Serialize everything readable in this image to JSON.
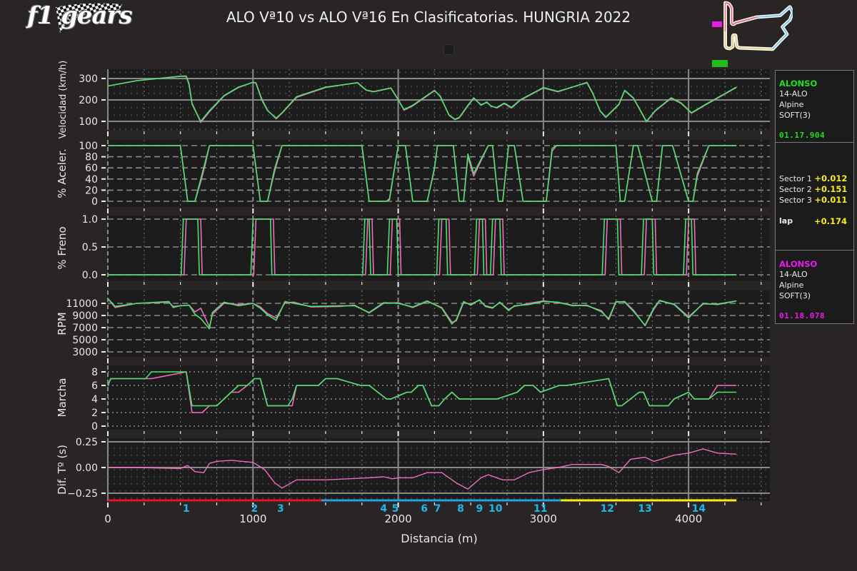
{
  "header": {
    "logo_text": "f1 gears",
    "title": "ALO Vª10 vs ALO Vª16 En Clasificatorias. HUNGRIA 2022"
  },
  "colors": {
    "background": "#282524",
    "plot_bg": "#1c1c1c",
    "driver1": "#4be36a",
    "driver2": "#f06cc0",
    "delta": "#f06cc0",
    "sector1": "#e8141c",
    "sector2": "#2a9ee8",
    "sector3": "#f4ee1e",
    "corner_label": "#1bb8f0",
    "time_green": "#22dd22",
    "time_magenta": "#e81ce8",
    "delta_yellow": "#f4ee1e"
  },
  "info": {
    "driver1": {
      "name": "ALONSO",
      "code": "14-ALO",
      "team": "Alpine",
      "tyre": "SOFT(3)",
      "laptime": "01.17.904"
    },
    "sectors": [
      {
        "label": "Sector 1",
        "delta": "+0.012"
      },
      {
        "label": "Sector 2",
        "delta": "+0.151"
      },
      {
        "label": "Sector 3",
        "delta": "+0.011"
      }
    ],
    "lap": {
      "label": "lap",
      "delta": "+0.174"
    },
    "driver2": {
      "name": "ALONSO",
      "code": "14-ALO",
      "team": "Alpine",
      "tyre": "SOFT(3)",
      "laptime": "01.18.078"
    }
  },
  "chart_data": {
    "type": "line",
    "title": "ALO Vª10 vs ALO Vª16 En Clasificatorias. HUNGRIA 2022",
    "xlabel": "Distancia (m)",
    "xlim": [
      0,
      4400
    ],
    "xticks": [
      0,
      1000,
      2000,
      3000,
      4000
    ],
    "x_tick_labels": [
      "0",
      "1000",
      "2000",
      "3000",
      "4000"
    ],
    "legend": [
      "ALO Vª10 (green)",
      "ALO Vª16 (magenta)"
    ],
    "subplots": [
      {
        "ylabel": "Velocidad (km/h)",
        "yticks": [
          100,
          200,
          300
        ],
        "ylim": [
          70,
          340
        ],
        "x": [
          0,
          200,
          500,
          540,
          560,
          580,
          640,
          700,
          800,
          900,
          1000,
          1020,
          1060,
          1100,
          1160,
          1200,
          1300,
          1500,
          1720,
          1780,
          1830,
          1950,
          2000,
          2040,
          2100,
          2250,
          2290,
          2350,
          2390,
          2420,
          2480,
          2520,
          2570,
          2610,
          2640,
          2680,
          2730,
          2780,
          2840,
          3000,
          3100,
          3300,
          3340,
          3390,
          3430,
          3520,
          3560,
          3620,
          3710,
          3770,
          3880,
          3950,
          4020,
          4120,
          4330
        ],
        "series": [
          {
            "name": "ALO Vª10",
            "values": [
              265,
              290,
              310,
              310,
              270,
              180,
              100,
              150,
              220,
              260,
              282,
              278,
              200,
              150,
              115,
              140,
              215,
              260,
              280,
              245,
              238,
              255,
              200,
              155,
              175,
              245,
              215,
              130,
              110,
              118,
              175,
              210,
              175,
              190,
              170,
              165,
              185,
              165,
              200,
              258,
              240,
              280,
              230,
              150,
              120,
              180,
              245,
              210,
              100,
              150,
              210,
              185,
              140,
              180,
              260
            ]
          },
          {
            "name": "ALO Vª16",
            "values": [
              265,
              290,
              311,
              312,
              275,
              185,
              95,
              145,
              218,
              258,
              283,
              280,
              205,
              152,
              112,
              138,
              212,
              258,
              281,
              246,
              239,
              256,
              202,
              152,
              172,
              243,
              218,
              128,
              108,
              116,
              172,
              208,
              178,
              188,
              172,
              162,
              183,
              162,
              198,
              256,
              238,
              282,
              232,
              148,
              118,
              178,
              243,
              208,
              98,
              148,
              208,
              183,
              138,
              178,
              258
            ]
          }
        ]
      },
      {
        "ylabel": "% Aceler.",
        "yticks": [
          0,
          20,
          40,
          60,
          80,
          100
        ],
        "ylim": [
          0,
          100
        ],
        "x": [
          0,
          500,
          550,
          600,
          640,
          670,
          700,
          1000,
          1050,
          1100,
          1150,
          1200,
          1750,
          1800,
          1920,
          1940,
          2000,
          2050,
          2100,
          2200,
          2250,
          2270,
          2380,
          2420,
          2450,
          2480,
          2520,
          2620,
          2650,
          2690,
          2720,
          2760,
          2800,
          2860,
          3020,
          3060,
          3090,
          3160,
          3500,
          3530,
          3560,
          3620,
          3650,
          3750,
          3780,
          3820,
          3890,
          4000,
          4030,
          4060,
          4140,
          4330
        ],
        "series": [
          {
            "name": "ALO Vª10",
            "values": [
              100,
              100,
              0,
              0,
              40,
              70,
              100,
              100,
              0,
              0,
              60,
              100,
              100,
              0,
              0,
              3,
              100,
              100,
              0,
              0,
              60,
              100,
              100,
              0,
              0,
              85,
              50,
              100,
              100,
              0,
              0,
              100,
              100,
              0,
              0,
              95,
              100,
              100,
              100,
              0,
              0,
              100,
              100,
              0,
              0,
              100,
              100,
              0,
              0,
              50,
              100,
              100
            ]
          },
          {
            "name": "ALO Vª16",
            "values": [
              100,
              100,
              0,
              0,
              35,
              65,
              100,
              100,
              0,
              0,
              55,
              100,
              100,
              0,
              0,
              5,
              100,
              100,
              0,
              0,
              58,
              100,
              100,
              0,
              0,
              80,
              45,
              100,
              100,
              0,
              0,
              100,
              100,
              0,
              0,
              90,
              100,
              100,
              100,
              0,
              0,
              100,
              100,
              0,
              0,
              100,
              100,
              0,
              0,
              45,
              100,
              100
            ]
          }
        ]
      },
      {
        "ylabel": "% Freno",
        "yticks": [
          0.0,
          0.5,
          1.0
        ],
        "y_tick_labels": [
          "0.0",
          "0.5",
          "1.0"
        ],
        "ylim": [
          0,
          1
        ],
        "brake_zones_m": [
          [
            520,
            620
          ],
          [
            1000,
            1120
          ],
          [
            1770,
            1800
          ],
          [
            1940,
            1990
          ],
          [
            2280,
            2330
          ],
          [
            2540,
            2580
          ],
          [
            2650,
            2700
          ],
          [
            3420,
            3510
          ],
          [
            3690,
            3750
          ],
          [
            3980,
            4020
          ]
        ],
        "series": [
          {
            "name": "ALO Vª10",
            "values": "on (1.0) within brake_zones_m, else 0.0"
          },
          {
            "name": "ALO Vª16",
            "values": "on (1.0) within brake_zones_m shifted by ~+20 m, else 0.0"
          }
        ]
      },
      {
        "ylabel": "RPM",
        "yticks": [
          3000,
          5000,
          7000,
          9000,
          11000
        ],
        "ylim": [
          3000,
          12500
        ],
        "x": [
          0,
          50,
          200,
          420,
          450,
          500,
          560,
          600,
          640,
          700,
          720,
          800,
          900,
          1000,
          1050,
          1100,
          1160,
          1220,
          1280,
          1400,
          1600,
          1700,
          1800,
          1900,
          2000,
          2100,
          2200,
          2300,
          2370,
          2400,
          2450,
          2500,
          2560,
          2600,
          2650,
          2700,
          2760,
          2800,
          2900,
          3000,
          3100,
          3200,
          3300,
          3400,
          3450,
          3500,
          3560,
          3620,
          3700,
          3760,
          3800,
          3900,
          4000,
          4100,
          4200,
          4330
        ],
        "series": [
          {
            "name": "ALO Vª10",
            "values": [
              11800,
              10500,
              11000,
              11300,
              10300,
              10600,
              10700,
              9200,
              8500,
              6800,
              9500,
              11200,
              10600,
              11000,
              10200,
              9100,
              8200,
              11300,
              11000,
              10500,
              10600,
              10600,
              9500,
              11100,
              11000,
              10400,
              11400,
              10200,
              7600,
              8300,
              11300,
              10700,
              11600,
              10500,
              10200,
              11200,
              9800,
              10600,
              10800,
              11300,
              11200,
              10600,
              10700,
              9600,
              8500,
              11300,
              11200,
              9700,
              7400,
              10200,
              11500,
              10800,
              8600,
              11000,
              10800,
              11400
            ]
          },
          {
            "name": "ALO Vª16",
            "values": [
              11800,
              10300,
              11000,
              11200,
              10500,
              10600,
              10700,
              9600,
              10200,
              7100,
              9200,
              11000,
              10800,
              11000,
              10400,
              9300,
              8600,
              11100,
              11200,
              10400,
              10500,
              10700,
              9400,
              11000,
              11100,
              10300,
              11300,
              10300,
              7900,
              8100,
              11100,
              10900,
              11500,
              10600,
              10300,
              11100,
              10000,
              10500,
              11000,
              11400,
              11100,
              10700,
              10600,
              9800,
              8300,
              11200,
              11300,
              9900,
              7300,
              10000,
              11400,
              10900,
              8800,
              10900,
              10900,
              11400
            ]
          }
        ]
      },
      {
        "ylabel": "Marcha",
        "yticks": [
          0,
          2,
          4,
          6,
          8
        ],
        "ylim": [
          0,
          8.5
        ],
        "x": [
          0,
          20,
          260,
          300,
          540,
          580,
          590,
          650,
          700,
          750,
          800,
          850,
          900,
          960,
          1010,
          1050,
          1100,
          1240,
          1270,
          1300,
          1450,
          1500,
          1580,
          1740,
          1800,
          1920,
          1950,
          2060,
          2090,
          2140,
          2170,
          2230,
          2280,
          2320,
          2370,
          2420,
          2560,
          2580,
          2680,
          2820,
          2870,
          2930,
          2980,
          3110,
          3160,
          3450,
          3510,
          3540,
          3600,
          3660,
          3690,
          3730,
          3860,
          3900,
          4000,
          4040,
          4140,
          4200,
          4330
        ],
        "series": [
          {
            "name": "ALO Vª10",
            "values": [
              6,
              7,
              7,
              8,
              8,
              3,
              3,
              3,
              3,
              3,
              4,
              5,
              6,
              6,
              7,
              7,
              3,
              3,
              4,
              6,
              6,
              7,
              7,
              6,
              6,
              4,
              4,
              5,
              5,
              6,
              6,
              3,
              3,
              4,
              5,
              4,
              4,
              4,
              4,
              5,
              6,
              6,
              5,
              6,
              6,
              7,
              3,
              3,
              4,
              5,
              5,
              3,
              3,
              4,
              5,
              4,
              4,
              5,
              5
            ]
          },
          {
            "name": "ALO Vª16",
            "values": [
              6,
              7,
              7,
              7,
              8,
              2,
              2,
              2,
              3,
              3,
              4,
              5,
              5,
              6,
              7,
              7,
              3,
              3,
              3,
              6,
              6,
              7,
              7,
              6,
              6,
              4,
              4,
              5,
              5,
              6,
              6,
              3,
              3,
              4,
              5,
              4,
              4,
              4,
              4,
              5,
              6,
              6,
              5,
              6,
              6,
              7,
              3,
              3,
              4,
              5,
              5,
              3,
              3,
              4,
              5,
              4,
              4,
              6,
              6
            ]
          }
        ]
      },
      {
        "ylabel": "Dif. Tº (s)",
        "yticks": [
          -0.25,
          0.0,
          0.25
        ],
        "y_tick_labels": [
          "−0.25",
          "0.00",
          "0.25"
        ],
        "ylim": [
          -0.33,
          0.3
        ],
        "x": [
          0,
          200,
          500,
          550,
          600,
          660,
          700,
          750,
          850,
          1000,
          1080,
          1150,
          1200,
          1250,
          1300,
          1500,
          1800,
          1900,
          1960,
          2000,
          2100,
          2200,
          2300,
          2400,
          2480,
          2570,
          2620,
          2720,
          2800,
          2900,
          3000,
          3100,
          3200,
          3400,
          3450,
          3520,
          3600,
          3700,
          3760,
          3810,
          3900,
          4000,
          4100,
          4200,
          4330
        ],
        "series": [
          {
            "name": "Delta",
            "values": [
              0.0,
              0.0,
              -0.01,
              0.02,
              -0.04,
              -0.05,
              0.04,
              0.06,
              0.07,
              0.05,
              -0.02,
              -0.15,
              -0.2,
              -0.16,
              -0.12,
              -0.12,
              -0.1,
              -0.09,
              -0.11,
              -0.1,
              -0.1,
              -0.05,
              -0.05,
              -0.15,
              -0.21,
              -0.1,
              -0.07,
              -0.12,
              -0.12,
              -0.05,
              -0.02,
              0.0,
              0.03,
              0.03,
              0.01,
              -0.05,
              0.08,
              0.1,
              0.06,
              0.08,
              0.12,
              0.14,
              0.18,
              0.14,
              0.13
            ]
          }
        ]
      }
    ],
    "sectors": [
      {
        "name": "Sector 1",
        "from": 0,
        "to": 1470,
        "color": "#e8141c"
      },
      {
        "name": "Sector 2",
        "from": 1470,
        "to": 3120,
        "color": "#2a9ee8"
      },
      {
        "name": "Sector 3",
        "from": 3120,
        "to": 4330,
        "color": "#f4ee1e"
      }
    ],
    "corners": [
      {
        "label": "1",
        "x": 540
      },
      {
        "label": "2",
        "x": 1010
      },
      {
        "label": "3",
        "x": 1190
      },
      {
        "label": "4",
        "x": 1900
      },
      {
        "label": "5",
        "x": 1980
      },
      {
        "label": "6",
        "x": 2180
      },
      {
        "label": "7",
        "x": 2270
      },
      {
        "label": "8",
        "x": 2430
      },
      {
        "label": "9",
        "x": 2560
      },
      {
        "label": "10",
        "x": 2670
      },
      {
        "label": "11",
        "x": 2980
      },
      {
        "label": "12",
        "x": 3440
      },
      {
        "label": "13",
        "x": 3700
      },
      {
        "label": "14",
        "x": 4070
      }
    ]
  }
}
